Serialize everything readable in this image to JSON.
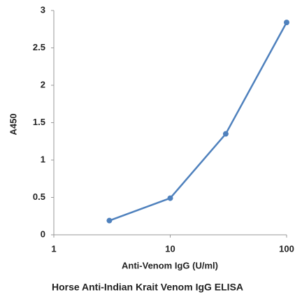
{
  "chart_data": {
    "type": "line",
    "title": "Horse Anti-Indian Krait Venom IgG ELISA",
    "x_label": "Anti-Venom IgG (U/ml)",
    "y_label": "A450",
    "x": [
      3,
      10,
      30,
      100
    ],
    "series": [
      {
        "name": "A450",
        "color": "#4f81bd",
        "values": [
          0.19,
          0.49,
          1.35,
          2.84
        ]
      }
    ],
    "xlim": [
      1,
      100
    ],
    "xticks": [
      1,
      10,
      100
    ],
    "x_log": true,
    "ylim": [
      0,
      3
    ],
    "yticks": [
      0,
      0.5,
      1,
      1.5,
      2,
      2.5,
      3
    ],
    "grid": false,
    "legend": false
  }
}
